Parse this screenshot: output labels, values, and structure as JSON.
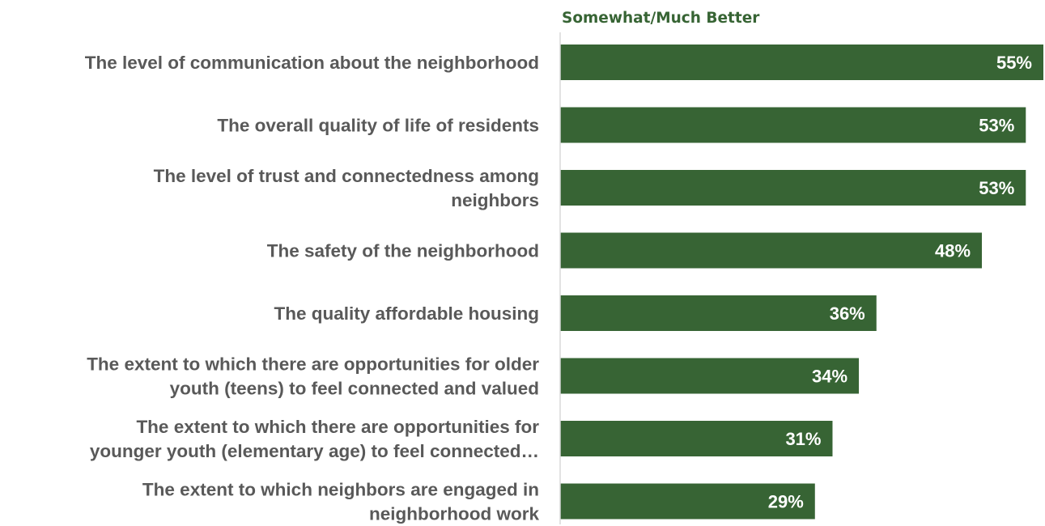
{
  "chart_data": {
    "type": "bar",
    "orientation": "horizontal",
    "series_header": "Somewhat/Much Better",
    "categories": [
      [
        "The level of communication about the neighborhood"
      ],
      [
        "The overall quality of life of residents"
      ],
      [
        "The level of trust and connectedness among",
        "neighbors"
      ],
      [
        "The safety of the neighborhood"
      ],
      [
        "The quality affordable housing"
      ],
      [
        "The extent to which there are opportunities for older",
        "youth (teens) to feel connected and valued"
      ],
      [
        "The extent to which there are opportunities for",
        "younger youth (elementary age) to feel connected…"
      ],
      [
        "The extent to which neighbors are engaged in",
        "neighborhood work"
      ]
    ],
    "values": [
      55,
      53,
      53,
      48,
      36,
      34,
      31,
      29
    ],
    "value_labels": [
      "55%",
      "53%",
      "53%",
      "48%",
      "36%",
      "34%",
      "31%",
      "29%"
    ],
    "xlim": [
      0,
      55
    ],
    "unit": "%",
    "grid": false,
    "bar_color": "#376434",
    "axis_color": "#d9d9d9",
    "label_color": "#595959",
    "header_color": "#376434"
  }
}
